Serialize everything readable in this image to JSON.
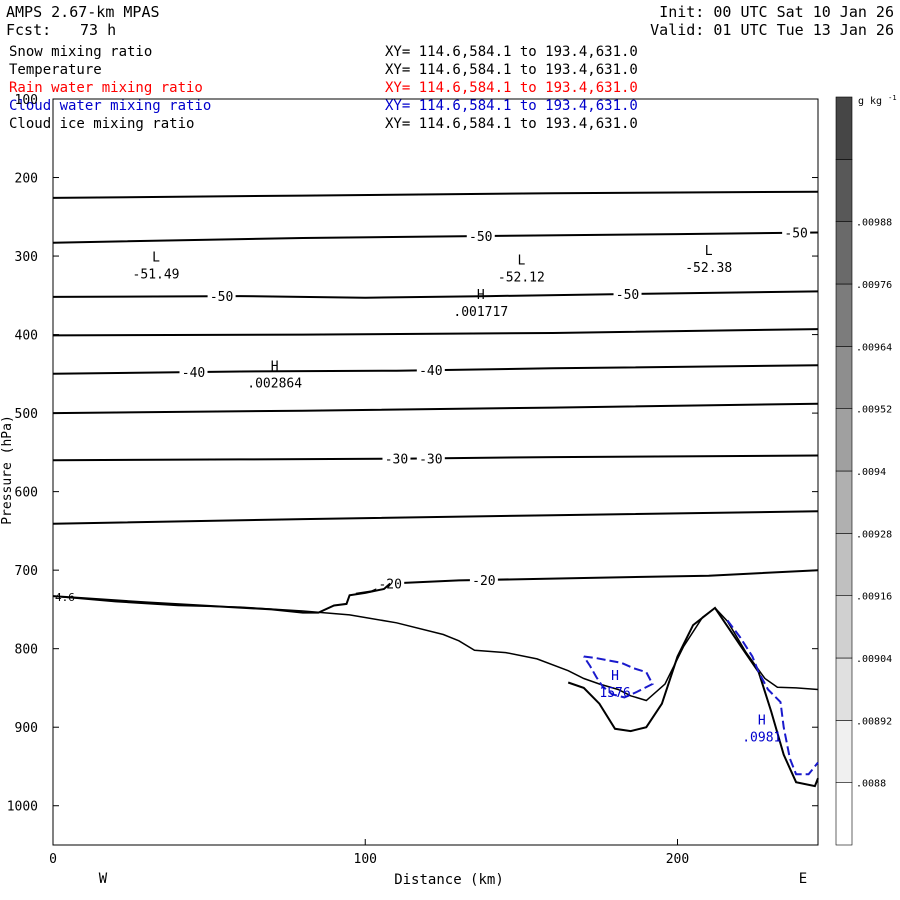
{
  "header": {
    "title": "AMPS 2.67-km MPAS",
    "init": "Init: 00 UTC Sat 10 Jan 26",
    "fcst_label": "Fcst:",
    "fcst_value": "73 h",
    "valid": "Valid: 01 UTC Tue 13 Jan 26"
  },
  "fields": [
    {
      "name": "Snow mixing ratio",
      "xy": "XY= 114.6,584.1 to 193.4,631.0",
      "color": "#000000"
    },
    {
      "name": "Temperature",
      "xy": "XY= 114.6,584.1 to 193.4,631.0",
      "color": "#000000"
    },
    {
      "name": "Rain water mixing ratio",
      "xy": "XY= 114.6,584.1 to 193.4,631.0",
      "color": "#ff0000"
    },
    {
      "name": "Cloud water mixing ratio",
      "xy": "XY= 114.6,584.1 to 193.4,631.0",
      "color": "#0000cc"
    },
    {
      "name": "Cloud ice mixing ratio",
      "xy": "XY= 114.6,584.1 to 193.4,631.0",
      "color": "#000000"
    }
  ],
  "chart_data": {
    "type": "line",
    "xlabel": "Distance (km)",
    "ylabel": "Pressure (hPa)",
    "xlim": [
      0,
      245
    ],
    "ylim": [
      100,
      1050
    ],
    "x_ticks": [
      {
        "value": 0,
        "label": "0"
      },
      {
        "value": 100,
        "label": "100"
      },
      {
        "value": 200,
        "label": "200"
      }
    ],
    "y_ticks": [
      {
        "value": 100,
        "label": "100"
      },
      {
        "value": 200,
        "label": "200"
      },
      {
        "value": 300,
        "label": "300"
      },
      {
        "value": 400,
        "label": "400"
      },
      {
        "value": 500,
        "label": "500"
      },
      {
        "value": 600,
        "label": "600"
      },
      {
        "value": 700,
        "label": "700"
      },
      {
        "value": 800,
        "label": "800"
      },
      {
        "value": 900,
        "label": "900"
      },
      {
        "value": 1000,
        "label": "1000"
      }
    ],
    "left_end_label": "W",
    "right_end_label": "E",
    "isotherms": [
      {
        "label": "",
        "points": [
          [
            0,
            226
          ],
          [
            80,
            223
          ],
          [
            160,
            220
          ],
          [
            245,
            218
          ]
        ],
        "labels_at": []
      },
      {
        "label": "-50",
        "points": [
          [
            0,
            283
          ],
          [
            80,
            277
          ],
          [
            150,
            274
          ],
          [
            200,
            272
          ],
          [
            245,
            270
          ]
        ],
        "labels_at": [
          137,
          238
        ]
      },
      {
        "label": "-50",
        "points": [
          [
            0,
            352
          ],
          [
            60,
            351
          ],
          [
            100,
            353
          ],
          [
            140,
            351
          ],
          [
            190,
            348
          ],
          [
            245,
            345
          ]
        ],
        "labels_at": [
          54,
          184
        ]
      },
      {
        "label": "",
        "points": [
          [
            0,
            401
          ],
          [
            80,
            400
          ],
          [
            160,
            398
          ],
          [
            245,
            393
          ]
        ],
        "labels_at": []
      },
      {
        "label": "-40",
        "points": [
          [
            0,
            450
          ],
          [
            60,
            447
          ],
          [
            110,
            446
          ],
          [
            160,
            443
          ],
          [
            245,
            439
          ]
        ],
        "labels_at": [
          45,
          121
        ]
      },
      {
        "label": "",
        "points": [
          [
            0,
            500
          ],
          [
            80,
            497
          ],
          [
            160,
            493
          ],
          [
            245,
            488
          ]
        ],
        "labels_at": []
      },
      {
        "label": "-30",
        "points": [
          [
            0,
            560
          ],
          [
            60,
            559
          ],
          [
            110,
            558
          ],
          [
            160,
            556
          ],
          [
            245,
            554
          ]
        ],
        "labels_at": [
          110,
          121
        ]
      },
      {
        "label": "",
        "points": [
          [
            0,
            641
          ],
          [
            80,
            635
          ],
          [
            160,
            630
          ],
          [
            245,
            625
          ]
        ],
        "labels_at": []
      },
      {
        "label": "-20",
        "points": [
          [
            97,
            730
          ],
          [
            102,
            727
          ],
          [
            108,
            717
          ],
          [
            130,
            713
          ],
          [
            170,
            710
          ],
          [
            210,
            707
          ],
          [
            245,
            700
          ]
        ],
        "labels_at": [
          108,
          138
        ]
      },
      {
        "label": "",
        "points": [
          [
            0,
            733
          ],
          [
            30,
            741
          ],
          [
            70,
            750
          ],
          [
            80,
            754
          ],
          [
            85,
            754
          ],
          [
            90,
            745
          ],
          [
            94,
            743
          ],
          [
            95,
            732
          ],
          [
            100,
            729
          ],
          [
            106,
            724
          ],
          [
            108,
            717
          ]
        ],
        "labels_at": []
      }
    ],
    "terrain": {
      "upper": [
        [
          0,
          733
        ],
        [
          20,
          740
        ],
        [
          40,
          745
        ],
        [
          60,
          747
        ],
        [
          80,
          752
        ],
        [
          95,
          757
        ],
        [
          110,
          767
        ],
        [
          125,
          782
        ],
        [
          130,
          790
        ],
        [
          135,
          802
        ],
        [
          145,
          805
        ],
        [
          155,
          813
        ],
        [
          165,
          828
        ],
        [
          170,
          838
        ],
        [
          175,
          845
        ],
        [
          181,
          852
        ],
        [
          185,
          860
        ],
        [
          190,
          866
        ],
        [
          196,
          845
        ],
        [
          202,
          797
        ],
        [
          208,
          760
        ],
        [
          212,
          748
        ],
        [
          216,
          765
        ],
        [
          222,
          805
        ],
        [
          228,
          838
        ],
        [
          232,
          849
        ],
        [
          238,
          850
        ],
        [
          245,
          852
        ]
      ],
      "lower": [
        [
          165,
          843
        ],
        [
          170,
          850
        ],
        [
          175,
          870
        ],
        [
          180,
          902
        ],
        [
          185,
          905
        ],
        [
          190,
          900
        ],
        [
          195,
          870
        ],
        [
          200,
          810
        ],
        [
          205,
          770
        ],
        [
          212,
          748
        ],
        [
          220,
          795
        ],
        [
          226,
          830
        ],
        [
          230,
          880
        ],
        [
          234,
          935
        ],
        [
          238,
          970
        ],
        [
          244,
          975
        ],
        [
          245,
          965
        ]
      ]
    },
    "cloud_water_contours": [
      [
        [
          170,
          810
        ],
        [
          174,
          812
        ],
        [
          178,
          815
        ],
        [
          182,
          818
        ],
        [
          186,
          825
        ],
        [
          190,
          830
        ],
        [
          192,
          845
        ],
        [
          187,
          855
        ],
        [
          183,
          862
        ],
        [
          179,
          858
        ],
        [
          176,
          848
        ],
        [
          174,
          836
        ],
        [
          172,
          822
        ],
        [
          170,
          810
        ]
      ],
      [
        [
          216,
          764
        ],
        [
          220,
          785
        ],
        [
          224,
          810
        ],
        [
          226,
          830
        ],
        [
          229,
          852
        ],
        [
          233,
          868
        ],
        [
          234,
          900
        ],
        [
          236,
          940
        ],
        [
          238,
          960
        ],
        [
          242,
          960
        ],
        [
          245,
          945
        ]
      ]
    ],
    "annotations": [
      {
        "label": "L",
        "value": "-51.49",
        "x": 33,
        "p": 317,
        "color": "#000000"
      },
      {
        "label": "L",
        "value": "-52.12",
        "x": 150,
        "p": 321,
        "color": "#000000"
      },
      {
        "label": "L",
        "value": "-52.38",
        "x": 210,
        "p": 309,
        "color": "#000000"
      },
      {
        "label": "H",
        "value": ".001717",
        "x": 137,
        "p": 365,
        "color": "#000000"
      },
      {
        "label": "H",
        "value": ".002864",
        "x": 71,
        "p": 456,
        "color": "#000000"
      },
      {
        "label": "H",
        "value": "1576",
        "x": 180,
        "p": 850,
        "color": "#0000cc"
      },
      {
        "label": "H",
        "value": ".0981",
        "x": 227,
        "p": 907,
        "color": "#0000cc"
      }
    ],
    "edge_label": "4.6",
    "colorbar": {
      "unit": "g kg",
      "unit_exp": "-1",
      "levels": [
        ".0088",
        ".00892",
        ".00904",
        ".00916",
        ".00928",
        ".0094",
        ".00952",
        ".00964",
        ".00976",
        ".00988"
      ],
      "colors": [
        "#ffffff",
        "#f0f0f0",
        "#e0e0e0",
        "#d0d0d0",
        "#c0c0c0",
        "#b0b0b0",
        "#a0a0a0",
        "#8e8e8e",
        "#7c7c7c",
        "#6a6a6a",
        "#585858",
        "#464646"
      ]
    }
  }
}
